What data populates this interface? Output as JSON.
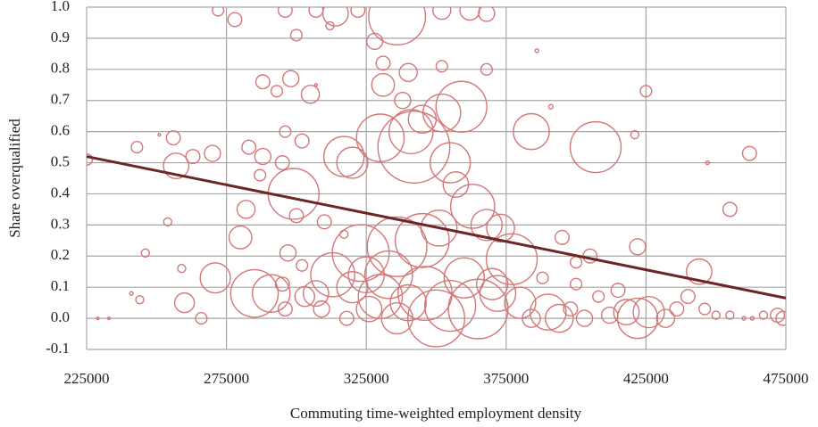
{
  "chart_data": {
    "type": "bubble",
    "x_label": "Commuting time-weighted employment density",
    "y_label": "Share overqualified",
    "xlim": [
      225000,
      475000
    ],
    "xticks": [
      225000,
      275000,
      325000,
      375000,
      425000,
      475000
    ],
    "ylim": [
      -0.1,
      1.0
    ],
    "yticks": [
      -0.1,
      {
        "value": 0,
        "label": "0.0"
      },
      0.1,
      0.2,
      0.3,
      0.4,
      0.5,
      0.6,
      0.7,
      0.8,
      0.9,
      {
        "value": 1,
        "label": "1.0"
      }
    ],
    "grid": true,
    "color": "#d47777",
    "x": [
      272000,
      278000,
      296000,
      307000,
      314000,
      322000,
      336000,
      328000,
      352000,
      362000,
      368000,
      300000,
      312000,
      331000,
      340000,
      352000,
      368000,
      386000,
      391000,
      425000,
      288000,
      293000,
      298000,
      305000,
      331000,
      338000,
      307000,
      359000,
      352000,
      345000,
      341000,
      384000,
      407000,
      421000,
      447000,
      462000,
      455000,
      225000,
      243000,
      251000,
      256000,
      263000,
      270000,
      257000,
      254000,
      246000,
      259000,
      241000,
      244000,
      233000,
      229000,
      260000,
      266000,
      271000,
      282000,
      280000,
      283000,
      288000,
      287000,
      299000,
      296000,
      302000,
      300000,
      295000,
      317000,
      320000,
      330000,
      342000,
      355000,
      357000,
      363000,
      368000,
      373000,
      377000,
      351000,
      345000,
      336000,
      323000,
      313000,
      310000,
      317000,
      297000,
      302000,
      291000,
      285000,
      295000,
      307000,
      320000,
      330000,
      340000,
      346000,
      355000,
      365000,
      350000,
      336000,
      326000,
      318000,
      309000,
      372000,
      380000,
      384000,
      390000,
      394000,
      398000,
      403000,
      408000,
      412000,
      418000,
      422000,
      426000,
      432000,
      436000,
      440000,
      444000,
      446000,
      450000,
      455000,
      460000,
      463000,
      467000,
      472000,
      474000,
      395000,
      400000,
      405000,
      422000,
      415000,
      400000,
      388000,
      360000,
      370000,
      333000,
      325000,
      303000,
      296000
    ],
    "values": [
      0.99,
      0.96,
      0.99,
      0.99,
      0.98,
      0.99,
      0.97,
      0.89,
      0.99,
      0.99,
      0.98,
      0.91,
      0.94,
      0.82,
      0.79,
      0.81,
      0.8,
      0.86,
      0.68,
      0.73,
      0.76,
      0.73,
      0.77,
      0.72,
      0.75,
      0.7,
      0.75,
      0.68,
      0.66,
      0.64,
      0.6,
      0.6,
      0.55,
      0.59,
      0.5,
      0.53,
      0.35,
      0.51,
      0.55,
      0.59,
      0.58,
      0.52,
      0.53,
      0.49,
      0.31,
      0.21,
      0.16,
      0.08,
      0.06,
      0.0,
      0.0,
      0.05,
      0.0,
      0.13,
      0.35,
      0.26,
      0.55,
      0.52,
      0.46,
      0.4,
      0.6,
      0.57,
      0.33,
      0.5,
      0.52,
      0.5,
      0.58,
      0.55,
      0.5,
      0.43,
      0.36,
      0.3,
      0.29,
      0.19,
      0.29,
      0.25,
      0.23,
      0.21,
      0.14,
      0.31,
      0.27,
      0.21,
      0.17,
      0.08,
      0.08,
      0.11,
      0.08,
      0.1,
      0.07,
      0.05,
      0.08,
      0.04,
      0.03,
      0.0,
      0.0,
      0.03,
      0.0,
      0.03,
      0.08,
      0.05,
      0.0,
      0.02,
      0.0,
      0.03,
      0.0,
      0.07,
      0.01,
      0.02,
      0.0,
      0.02,
      0.0,
      0.03,
      0.07,
      0.15,
      0.03,
      0.01,
      0.01,
      0.0,
      0.0,
      0.01,
      0.01,
      0.0,
      0.26,
      0.18,
      0.2,
      0.23,
      0.09,
      0.11,
      0.13,
      0.13,
      0.11,
      0.14,
      0.14,
      0.07,
      0.03
    ],
    "sizes": [
      2,
      3,
      3,
      3,
      10,
      3,
      50,
      4,
      5,
      6,
      4,
      2,
      1,
      3,
      5,
      2,
      2,
      0.2,
      0.3,
      2,
      3,
      2,
      4,
      5,
      8,
      4,
      0.1,
      40,
      22,
      12,
      30,
      20,
      40,
      1,
      0.2,
      3,
      3,
      2,
      2,
      0.1,
      3,
      3,
      4,
      10,
      1,
      1,
      1,
      0.2,
      1,
      0.1,
      0.1,
      6,
      2,
      14,
      5,
      8,
      3,
      4,
      2,
      40,
      2,
      3,
      3,
      3,
      25,
      15,
      35,
      80,
      25,
      10,
      30,
      15,
      12,
      40,
      20,
      45,
      55,
      50,
      30,
      3,
      1,
      4,
      2,
      22,
      35,
      3,
      10,
      15,
      30,
      20,
      45,
      40,
      55,
      50,
      15,
      10,
      3,
      4,
      20,
      15,
      5,
      20,
      12,
      3,
      4,
      2,
      4,
      10,
      25,
      15,
      5,
      3,
      3,
      10,
      2,
      1,
      1,
      0.2,
      0.2,
      1,
      3,
      3,
      3,
      2,
      3,
      4,
      3,
      2,
      2,
      25,
      15,
      35,
      20,
      6,
      3
    ],
    "trendline": {
      "x": [
        225000,
        475000
      ],
      "values": [
        0.52,
        0.065
      ],
      "color": "#6e2525"
    }
  }
}
